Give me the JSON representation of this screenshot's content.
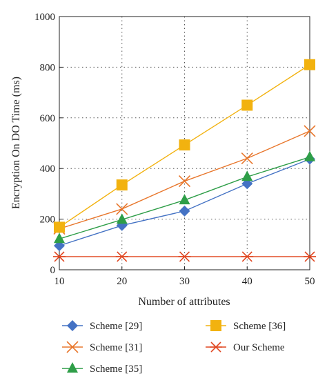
{
  "chart_data": {
    "type": "line",
    "xlabel": "Number of attributes",
    "ylabel": "Encryption On DO Time (ms)",
    "x": [
      10,
      20,
      30,
      40,
      50
    ],
    "xlim": [
      10,
      50
    ],
    "ylim": [
      0,
      1000
    ],
    "xticks": [
      "10",
      "20",
      "30",
      "40",
      "50"
    ],
    "yticks": [
      "0",
      "200",
      "400",
      "600",
      "800",
      "1000"
    ],
    "grid": true,
    "legend_position": "bottom",
    "series": [
      {
        "name": "Scheme [29]",
        "marker": "diamond",
        "color": "#4472C4",
        "values": [
          95,
          175,
          232,
          340,
          437
        ]
      },
      {
        "name": "Scheme [31]",
        "marker": "x",
        "color": "#E8762B",
        "values": [
          162,
          240,
          350,
          440,
          548
        ]
      },
      {
        "name": "Scheme [35]",
        "marker": "triangle",
        "color": "#2E9E48",
        "values": [
          122,
          198,
          275,
          367,
          445
        ]
      },
      {
        "name": "Scheme [36]",
        "marker": "square",
        "color": "#F2B20F",
        "values": [
          168,
          335,
          493,
          650,
          810
        ]
      },
      {
        "name": "Our Scheme",
        "marker": "star",
        "color": "#E0451F",
        "values": [
          52,
          52,
          52,
          52,
          52
        ]
      }
    ]
  }
}
